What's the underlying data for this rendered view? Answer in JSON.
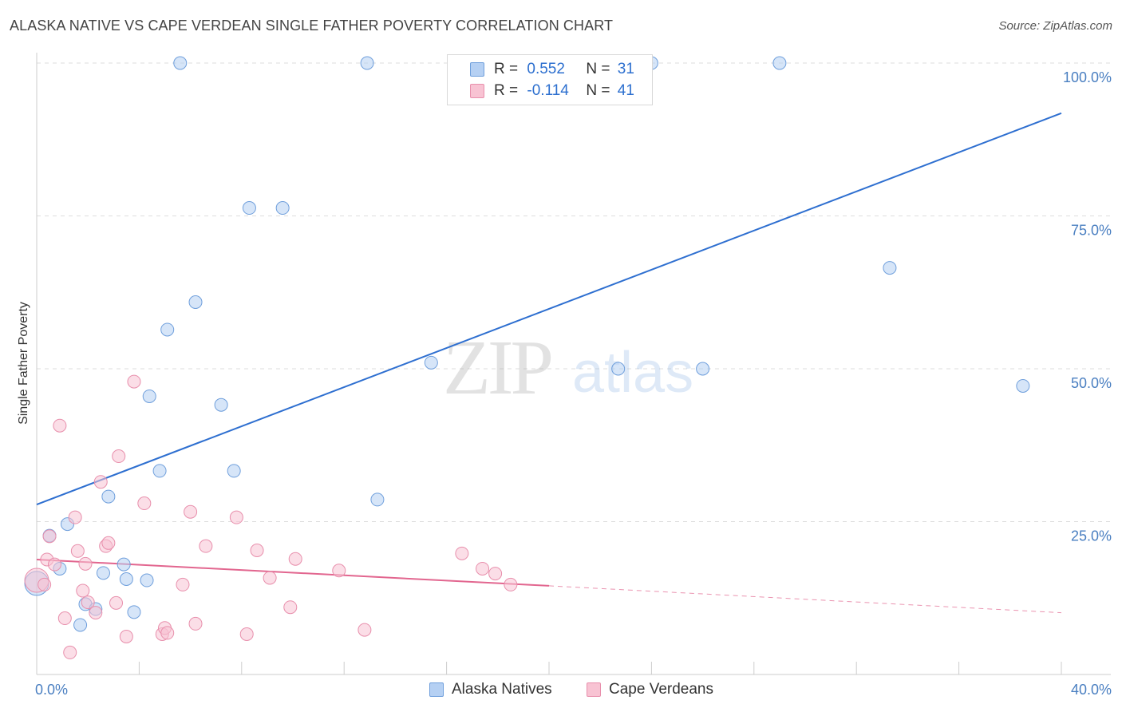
{
  "header": {
    "title": "ALASKA NATIVE VS CAPE VERDEAN SINGLE FATHER POVERTY CORRELATION CHART",
    "source": "Source: ZipAtlas.com"
  },
  "watermark": {
    "zip": "ZIP",
    "atlas": "atlas"
  },
  "legend": {
    "series1": {
      "r_label": "R =",
      "r_value": "0.552",
      "n_label": "N =",
      "n_value": "31"
    },
    "series2": {
      "r_label": "R =",
      "r_value": "-0.114",
      "n_label": "N =",
      "n_value": "41"
    }
  },
  "colors": {
    "blue_fill": "#b5d0f3",
    "blue_stroke": "#6f9fdc",
    "blue_line": "#2e6fd0",
    "pink_fill": "#f8c3d3",
    "pink_stroke": "#e88fac",
    "pink_line": "#e2668f",
    "grid": "#dddddd",
    "axis": "#cccccc",
    "tick_text": "#4a7fc1"
  },
  "chart_data": {
    "type": "scatter",
    "title": "ALASKA NATIVE VS CAPE VERDEAN SINGLE FATHER POVERTY CORRELATION CHART",
    "xlabel": "",
    "ylabel": "Single Father Poverty",
    "xlim": [
      0,
      40
    ],
    "ylim": [
      0,
      100
    ],
    "x_tick_labels": [
      "0.0%",
      "40.0%"
    ],
    "y_ticks": [
      25,
      50,
      75,
      100
    ],
    "y_tick_labels": [
      "25.0%",
      "50.0%",
      "75.0%",
      "100.0%"
    ],
    "grid": true,
    "series": [
      {
        "name": "Alaska Natives",
        "color": "blue",
        "r": 0.552,
        "n": 31,
        "trend": {
          "x": [
            0,
            40
          ],
          "y": [
            27.8,
            91.8
          ]
        },
        "points": [
          {
            "x": 0.0,
            "y": 14.9,
            "s": 2
          },
          {
            "x": 0.5,
            "y": 22.7
          },
          {
            "x": 0.9,
            "y": 17.3
          },
          {
            "x": 1.2,
            "y": 24.6
          },
          {
            "x": 1.7,
            "y": 8.1
          },
          {
            "x": 1.9,
            "y": 11.5
          },
          {
            "x": 2.3,
            "y": 10.7
          },
          {
            "x": 2.6,
            "y": 16.6
          },
          {
            "x": 2.8,
            "y": 29.1
          },
          {
            "x": 3.4,
            "y": 18.0
          },
          {
            "x": 3.5,
            "y": 15.6
          },
          {
            "x": 3.8,
            "y": 10.2
          },
          {
            "x": 4.3,
            "y": 15.4
          },
          {
            "x": 4.4,
            "y": 45.5
          },
          {
            "x": 4.8,
            "y": 33.3
          },
          {
            "x": 5.1,
            "y": 56.4
          },
          {
            "x": 5.6,
            "y": 100.0
          },
          {
            "x": 6.2,
            "y": 60.9
          },
          {
            "x": 7.2,
            "y": 44.1
          },
          {
            "x": 7.7,
            "y": 33.3
          },
          {
            "x": 8.3,
            "y": 76.3
          },
          {
            "x": 9.6,
            "y": 76.3
          },
          {
            "x": 12.9,
            "y": 100.0
          },
          {
            "x": 13.3,
            "y": 28.6
          },
          {
            "x": 15.4,
            "y": 51.0
          },
          {
            "x": 22.7,
            "y": 50.0
          },
          {
            "x": 24.0,
            "y": 100.0
          },
          {
            "x": 26.0,
            "y": 50.0
          },
          {
            "x": 29.0,
            "y": 100.0
          },
          {
            "x": 33.3,
            "y": 66.5
          },
          {
            "x": 38.5,
            "y": 47.2
          }
        ]
      },
      {
        "name": "Cape Verdeans",
        "color": "pink",
        "r": -0.114,
        "n": 41,
        "trend": {
          "x": [
            0,
            20
          ],
          "y": [
            18.8,
            14.5
          ]
        },
        "trend_extended": {
          "x": [
            20,
            40
          ],
          "y": [
            14.5,
            10.1
          ]
        },
        "points": [
          {
            "x": 0.0,
            "y": 15.4,
            "s": 2
          },
          {
            "x": 0.3,
            "y": 14.7
          },
          {
            "x": 0.4,
            "y": 18.8
          },
          {
            "x": 0.5,
            "y": 22.6
          },
          {
            "x": 0.7,
            "y": 18.0
          },
          {
            "x": 0.9,
            "y": 40.7
          },
          {
            "x": 1.1,
            "y": 9.2
          },
          {
            "x": 1.3,
            "y": 3.6
          },
          {
            "x": 1.5,
            "y": 25.7
          },
          {
            "x": 1.6,
            "y": 20.2
          },
          {
            "x": 1.8,
            "y": 13.7
          },
          {
            "x": 1.9,
            "y": 18.1
          },
          {
            "x": 2.0,
            "y": 11.8
          },
          {
            "x": 2.3,
            "y": 10.1
          },
          {
            "x": 2.5,
            "y": 31.5
          },
          {
            "x": 2.7,
            "y": 21.0
          },
          {
            "x": 2.8,
            "y": 21.5
          },
          {
            "x": 3.1,
            "y": 11.7
          },
          {
            "x": 3.2,
            "y": 35.7
          },
          {
            "x": 3.5,
            "y": 6.2
          },
          {
            "x": 3.8,
            "y": 47.9
          },
          {
            "x": 4.2,
            "y": 28.0
          },
          {
            "x": 4.9,
            "y": 6.6
          },
          {
            "x": 5.0,
            "y": 7.6
          },
          {
            "x": 5.1,
            "y": 6.8
          },
          {
            "x": 5.7,
            "y": 14.7
          },
          {
            "x": 6.0,
            "y": 26.6
          },
          {
            "x": 6.2,
            "y": 8.3
          },
          {
            "x": 6.6,
            "y": 21.0
          },
          {
            "x": 7.8,
            "y": 25.7
          },
          {
            "x": 8.2,
            "y": 6.6
          },
          {
            "x": 8.6,
            "y": 20.3
          },
          {
            "x": 9.1,
            "y": 15.8
          },
          {
            "x": 9.9,
            "y": 11.0
          },
          {
            "x": 10.1,
            "y": 18.9
          },
          {
            "x": 11.8,
            "y": 17.0
          },
          {
            "x": 12.8,
            "y": 7.3
          },
          {
            "x": 16.6,
            "y": 19.8
          },
          {
            "x": 17.4,
            "y": 17.3
          },
          {
            "x": 17.9,
            "y": 16.5
          },
          {
            "x": 18.5,
            "y": 14.7
          }
        ]
      }
    ]
  }
}
